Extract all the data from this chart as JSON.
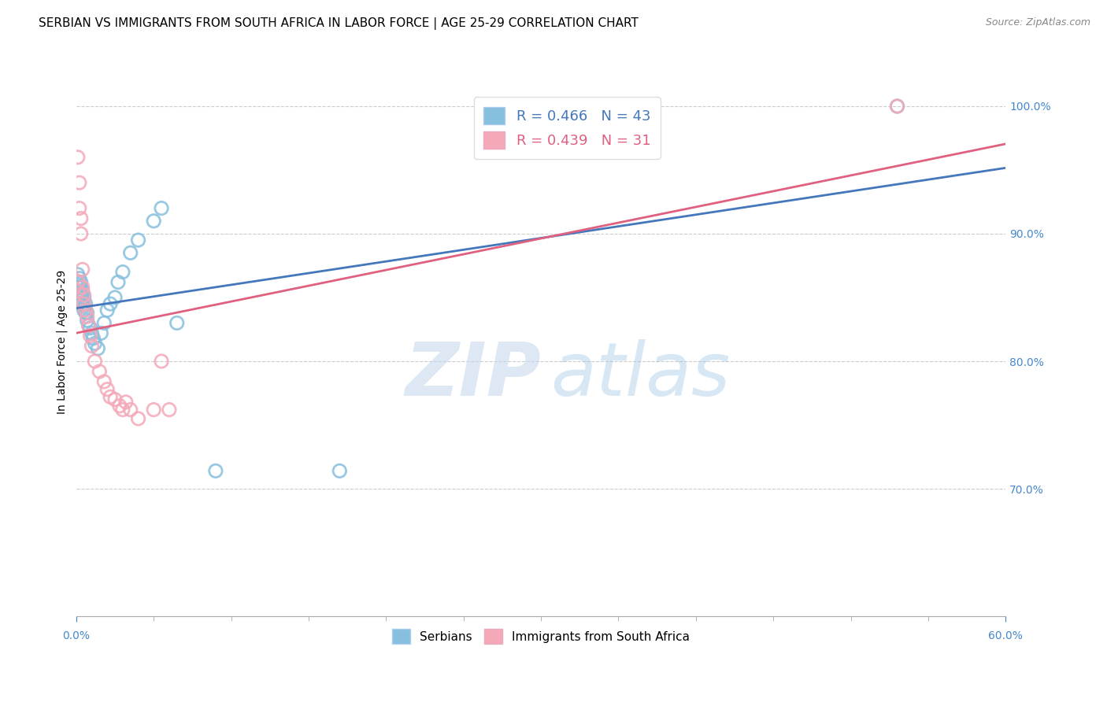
{
  "title": "SERBIAN VS IMMIGRANTS FROM SOUTH AFRICA IN LABOR FORCE | AGE 25-29 CORRELATION CHART",
  "source": "Source: ZipAtlas.com",
  "ylabel": "In Labor Force | Age 25-29",
  "xlim": [
    0.0,
    0.6
  ],
  "ylim": [
    0.6,
    1.03
  ],
  "xtick_positions": [
    0.0,
    0.6
  ],
  "xtick_labels": [
    "0.0%",
    "60.0%"
  ],
  "yticks": [
    0.7,
    0.8,
    0.9,
    1.0
  ],
  "ytick_labels": [
    "70.0%",
    "80.0%",
    "90.0%",
    "100.0%"
  ],
  "blue_color": "#87bfde",
  "pink_color": "#f4a8b8",
  "blue_edge_color": "#5599cc",
  "pink_edge_color": "#e87090",
  "blue_line_color": "#4477bb",
  "pink_line_color": "#e06080",
  "R_blue": 0.466,
  "N_blue": 43,
  "R_pink": 0.439,
  "N_pink": 31,
  "legend_label_blue": "Serbians",
  "legend_label_pink": "Immigrants from South Africa",
  "blue_x": [
    0.001,
    0.001,
    0.001,
    0.001,
    0.001,
    0.002,
    0.002,
    0.002,
    0.003,
    0.003,
    0.003,
    0.003,
    0.004,
    0.004,
    0.004,
    0.005,
    0.005,
    0.005,
    0.006,
    0.006,
    0.007,
    0.007,
    0.008,
    0.009,
    0.01,
    0.011,
    0.012,
    0.014,
    0.016,
    0.018,
    0.02,
    0.022,
    0.025,
    0.027,
    0.03,
    0.035,
    0.04,
    0.05,
    0.055,
    0.065,
    0.09,
    0.17,
    0.53
  ],
  "blue_y": [
    0.862,
    0.858,
    0.855,
    0.868,
    0.848,
    0.86,
    0.854,
    0.865,
    0.852,
    0.848,
    0.858,
    0.862,
    0.852,
    0.845,
    0.855,
    0.843,
    0.84,
    0.85,
    0.838,
    0.845,
    0.832,
    0.838,
    0.828,
    0.826,
    0.822,
    0.818,
    0.814,
    0.81,
    0.822,
    0.83,
    0.84,
    0.845,
    0.85,
    0.862,
    0.87,
    0.885,
    0.895,
    0.91,
    0.92,
    0.83,
    0.714,
    0.714,
    1.0
  ],
  "pink_x": [
    0.001,
    0.001,
    0.001,
    0.002,
    0.002,
    0.003,
    0.003,
    0.004,
    0.004,
    0.005,
    0.005,
    0.006,
    0.007,
    0.008,
    0.009,
    0.01,
    0.012,
    0.015,
    0.018,
    0.02,
    0.025,
    0.03,
    0.04,
    0.05,
    0.06,
    0.035,
    0.028,
    0.022,
    0.032,
    0.055,
    0.53
  ],
  "pink_y": [
    0.862,
    0.855,
    0.96,
    0.94,
    0.92,
    0.912,
    0.9,
    0.858,
    0.872,
    0.852,
    0.845,
    0.84,
    0.835,
    0.828,
    0.82,
    0.812,
    0.8,
    0.792,
    0.784,
    0.778,
    0.77,
    0.762,
    0.755,
    0.762,
    0.762,
    0.762,
    0.765,
    0.772,
    0.768,
    0.8,
    1.0
  ],
  "watermark_zip": "ZIP",
  "watermark_atlas": "atlas",
  "background_color": "#ffffff",
  "grid_color": "#cccccc",
  "axis_color": "#4488cc",
  "title_fontsize": 11,
  "label_fontsize": 10,
  "tick_fontsize": 10,
  "source_fontsize": 9
}
